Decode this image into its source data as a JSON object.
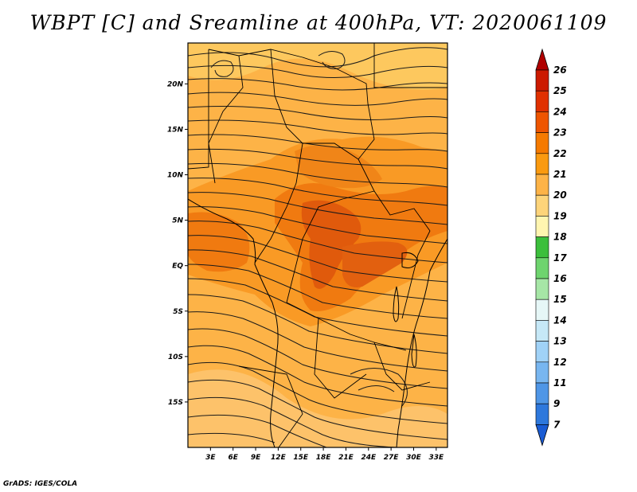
{
  "title": "WBPT [C] and Sreamline at 400hPa, VT: 2020061109",
  "credit": "GrADS: IGES/COLA",
  "map": {
    "lat_labels": [
      "20N",
      "15N",
      "10N",
      "5N",
      "EQ",
      "5S",
      "10S",
      "15S"
    ],
    "lat_values": [
      20,
      15,
      10,
      5,
      0,
      -5,
      -10,
      -15
    ],
    "lon_labels": [
      "3E",
      "6E",
      "9E",
      "12E",
      "15E",
      "18E",
      "21E",
      "24E",
      "27E",
      "30E",
      "33E"
    ],
    "lon_values": [
      3,
      6,
      9,
      12,
      15,
      18,
      21,
      24,
      27,
      30,
      33
    ],
    "lon_range": [
      0,
      34.5
    ],
    "lat_range": [
      -20,
      24.5
    ]
  },
  "colorbar": {
    "labels": [
      "26",
      "25",
      "24",
      "23",
      "22",
      "21",
      "20",
      "19",
      "18",
      "17",
      "16",
      "15",
      "14",
      "13",
      "12",
      "11",
      "9",
      "7"
    ],
    "colors": [
      "#b00000",
      "#cc1a00",
      "#e03000",
      "#ee5500",
      "#f57a00",
      "#fa9a10",
      "#fdb347",
      "#fdd47a",
      "#fff5b0",
      "#3cbf3c",
      "#6ed46e",
      "#a6e6a6",
      "#e6f7f7",
      "#c6e8f7",
      "#a0d2f7",
      "#78b6f0",
      "#4f96e6",
      "#2e78dc",
      "#1a5cd4"
    ]
  }
}
